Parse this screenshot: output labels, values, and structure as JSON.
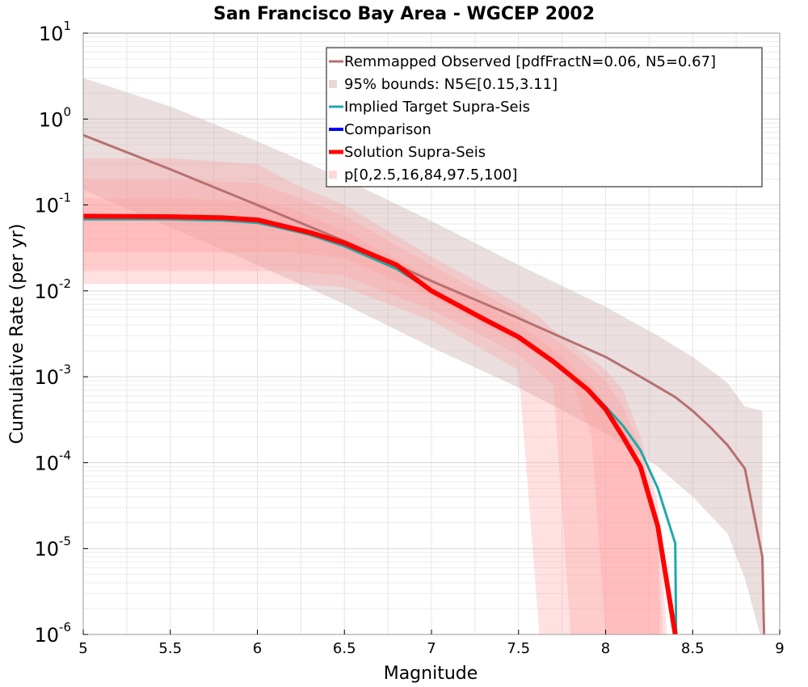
{
  "chart_data": {
    "type": "line",
    "title": "San Francisco Bay Area - WGCEP 2002",
    "xlabel": "Magnitude",
    "ylabel": "Cumulative Rate (per yr)",
    "xlim": [
      5,
      9
    ],
    "ylim": [
      1e-06,
      10
    ],
    "y_scale": "log",
    "grid": true,
    "legend_position": "top-right",
    "x_ticks": [
      "5",
      "5.5",
      "6",
      "6.5",
      "7",
      "7.5",
      "8",
      "8.5",
      "9"
    ],
    "y_ticks": [
      {
        "base": "10",
        "exp": "1"
      },
      {
        "base": "10",
        "exp": "0"
      },
      {
        "base": "10",
        "exp": "-1"
      },
      {
        "base": "10",
        "exp": "-2"
      },
      {
        "base": "10",
        "exp": "-3"
      },
      {
        "base": "10",
        "exp": "-4"
      },
      {
        "base": "10",
        "exp": "-5"
      },
      {
        "base": "10",
        "exp": "-6"
      }
    ],
    "legend": [
      {
        "label": "Remmapped Observed [pdfFractN=0.06, N5=0.67]",
        "color": "#b87070",
        "kind": "line"
      },
      {
        "label": "95% bounds: N5∈[0.15,3.11]",
        "color": "#e8d8d8",
        "kind": "patch"
      },
      {
        "label": "Implied Target Supra-Seis",
        "color": "#20a8a8",
        "kind": "line"
      },
      {
        "label": "Comparison",
        "color": "#0000ff",
        "kind": "line"
      },
      {
        "label": "Solution Supra-Seis",
        "color": "#ff0000",
        "kind": "line"
      },
      {
        "label": "p[0,2.5,16,84,97.5,100]",
        "color": "#ffd8d8",
        "kind": "patch"
      }
    ],
    "bands": [
      {
        "name": "95% bounds",
        "color": "#c8a8a8",
        "opacity": 0.38,
        "x": [
          5.0,
          5.5,
          6.0,
          6.5,
          7.0,
          7.5,
          8.0,
          8.3,
          8.5,
          8.7,
          8.8,
          8.9
        ],
        "upper": [
          3.0,
          1.4,
          0.55,
          0.2,
          0.065,
          0.02,
          0.0065,
          0.003,
          0.0017,
          0.00085,
          0.00045,
          0.0004
        ],
        "lower": [
          0.15,
          0.055,
          0.02,
          0.007,
          0.0022,
          0.00075,
          0.00022,
          9e-05,
          4e-05,
          1.5e-05,
          4.5e-06,
          8e-07
        ]
      },
      {
        "name": "p0-100",
        "color": "#ff9a9a",
        "opacity": 0.3,
        "x": [
          5.0,
          5.5,
          6.0,
          6.2,
          6.5,
          7.0,
          7.5,
          7.62,
          7.7,
          7.8,
          8.0,
          8.1,
          8.2,
          8.3,
          8.35
        ],
        "upper": [
          0.35,
          0.35,
          0.3,
          0.18,
          0.1,
          0.025,
          0.007,
          0.005,
          0.0035,
          0.0025,
          0.0012,
          0.0007,
          0.0002,
          3.5e-05,
          1.2e-06
        ],
        "lower": [
          0.012,
          0.012,
          0.012,
          0.012,
          0.011,
          0.0045,
          0.0012,
          1e-06,
          1e-06,
          1e-06,
          1e-06,
          1e-06,
          1e-06,
          1e-06,
          1e-06
        ]
      },
      {
        "name": "p2.5-97.5",
        "color": "#ff9a9a",
        "opacity": 0.3,
        "x": [
          5.0,
          5.5,
          6.0,
          6.2,
          6.5,
          7.0,
          7.5,
          7.7,
          7.8,
          8.0,
          8.1,
          8.2,
          8.3,
          8.33
        ],
        "upper": [
          0.2,
          0.2,
          0.18,
          0.13,
          0.075,
          0.02,
          0.0055,
          0.0028,
          0.002,
          0.0009,
          0.00045,
          0.00015,
          2e-05,
          1e-06
        ],
        "lower": [
          0.017,
          0.017,
          0.017,
          0.017,
          0.015,
          0.006,
          0.0018,
          0.0008,
          1e-06,
          1e-06,
          1e-06,
          1e-06,
          1e-06,
          1e-06
        ]
      },
      {
        "name": "p16-84",
        "color": "#ff9a9a",
        "opacity": 0.3,
        "x": [
          5.0,
          5.5,
          6.0,
          6.2,
          6.5,
          7.0,
          7.5,
          7.8,
          7.92,
          8.0,
          8.1,
          8.2,
          8.3,
          8.31
        ],
        "upper": [
          0.12,
          0.12,
          0.11,
          0.09,
          0.05,
          0.014,
          0.0042,
          0.0014,
          0.0008,
          0.0005,
          0.00025,
          8e-05,
          1.2e-05,
          1e-06
        ],
        "lower": [
          0.028,
          0.028,
          0.028,
          0.028,
          0.024,
          0.0085,
          0.0025,
          0.001,
          0.0002,
          1e-06,
          1e-06,
          1e-06,
          1e-06,
          1e-06
        ]
      }
    ],
    "series": [
      {
        "name": "Remmapped Observed [pdfFractN=0.06, N5=0.67]",
        "color": "#b87070",
        "width": 3,
        "x": [
          5.0,
          5.5,
          6.0,
          6.5,
          7.0,
          7.5,
          8.0,
          8.2,
          8.4,
          8.5,
          8.6,
          8.7,
          8.8,
          8.9,
          8.91
        ],
        "y": [
          0.65,
          0.26,
          0.1,
          0.038,
          0.013,
          0.0048,
          0.0017,
          0.001,
          0.00058,
          0.0004,
          0.00026,
          0.00016,
          8.5e-05,
          8e-06,
          1e-06
        ]
      },
      {
        "name": "Implied Target Supra-Seis",
        "color": "#20a8a8",
        "width": 3,
        "x": [
          5.0,
          5.5,
          5.8,
          6.0,
          6.1,
          6.3,
          6.5,
          6.8,
          7.0,
          7.3,
          7.5,
          7.7,
          7.9,
          8.0,
          8.1,
          8.2,
          8.3,
          8.4,
          8.405
        ],
        "y": [
          0.068,
          0.068,
          0.066,
          0.062,
          0.056,
          0.045,
          0.033,
          0.018,
          0.01,
          0.0048,
          0.0029,
          0.0015,
          0.00073,
          0.00045,
          0.00027,
          0.00014,
          5e-05,
          1.15e-05,
          1e-06
        ]
      },
      {
        "name": "Comparison",
        "color": "#0000ff",
        "width": 4,
        "x": [
          5.0,
          5.5,
          5.8,
          6.0,
          6.1,
          6.3,
          6.5,
          6.8,
          7.0,
          7.3,
          7.5,
          7.7,
          7.9,
          8.0,
          8.1,
          8.2,
          8.3,
          8.4
        ],
        "y": [
          0.074,
          0.073,
          0.071,
          0.067,
          0.06,
          0.048,
          0.036,
          0.02,
          0.01,
          0.0047,
          0.0029,
          0.0015,
          0.0007,
          0.00042,
          0.0002,
          9e-05,
          1.8e-05,
          1e-06
        ]
      },
      {
        "name": "Solution Supra-Seis",
        "color": "#ff0000",
        "width": 6,
        "x": [
          5.0,
          5.5,
          5.8,
          6.0,
          6.1,
          6.3,
          6.5,
          6.8,
          7.0,
          7.3,
          7.5,
          7.7,
          7.9,
          8.0,
          8.1,
          8.2,
          8.3,
          8.4
        ],
        "y": [
          0.074,
          0.073,
          0.071,
          0.067,
          0.06,
          0.048,
          0.036,
          0.02,
          0.01,
          0.0047,
          0.0029,
          0.0015,
          0.0007,
          0.00042,
          0.0002,
          9e-05,
          1.8e-05,
          1e-06
        ]
      }
    ]
  }
}
